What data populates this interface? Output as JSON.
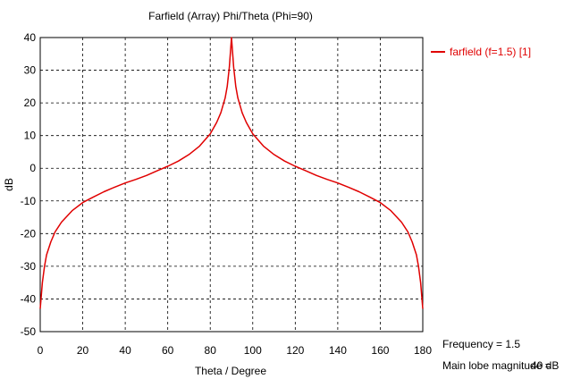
{
  "chart_data": {
    "type": "line",
    "title": "Farfield (Array)  Phi/Theta (Phi=90)",
    "xlabel": "Theta / Degree",
    "ylabel": "dB",
    "xlim": [
      0,
      180
    ],
    "ylim": [
      -50,
      40
    ],
    "xticks": [
      0,
      20,
      40,
      60,
      80,
      100,
      120,
      140,
      160,
      180
    ],
    "yticks": [
      40,
      30,
      20,
      10,
      0,
      -10,
      -20,
      -30,
      -40,
      -50
    ],
    "grid": true,
    "legend_position": "top-right",
    "series": [
      {
        "name": "farfield (f=1.5) [1]",
        "color": "#e00000",
        "x": [
          0,
          1,
          2,
          3,
          5,
          7,
          10,
          15,
          20,
          25,
          30,
          35,
          40,
          45,
          50,
          55,
          60,
          65,
          70,
          75,
          80,
          83,
          85,
          87,
          88,
          89,
          90,
          91,
          92,
          93,
          95,
          97,
          100,
          105,
          110,
          115,
          120,
          125,
          130,
          135,
          140,
          145,
          150,
          155,
          160,
          165,
          170,
          173,
          175,
          177,
          178,
          179,
          180
        ],
        "y": [
          -43,
          -35,
          -30,
          -26.5,
          -22.5,
          -19.5,
          -16.5,
          -13,
          -10.5,
          -8.8,
          -7.2,
          -5.8,
          -4.5,
          -3.4,
          -2.2,
          -0.8,
          0.6,
          2.2,
          4.2,
          6.8,
          10.5,
          14,
          17,
          21.5,
          25,
          31,
          40,
          31,
          25,
          21.5,
          17,
          14,
          10.5,
          6.8,
          4.2,
          2.2,
          0.6,
          -0.8,
          -2.2,
          -3.4,
          -4.5,
          -5.8,
          -7.2,
          -8.8,
          -10.5,
          -13,
          -16.5,
          -19.5,
          -22.5,
          -26.5,
          -30,
          -35,
          -43
        ]
      }
    ]
  },
  "info": {
    "frequency_label": "Frequency = 1.5",
    "main_lobe_label": "Main lobe magnitude =",
    "main_lobe_value": "40 dB"
  }
}
